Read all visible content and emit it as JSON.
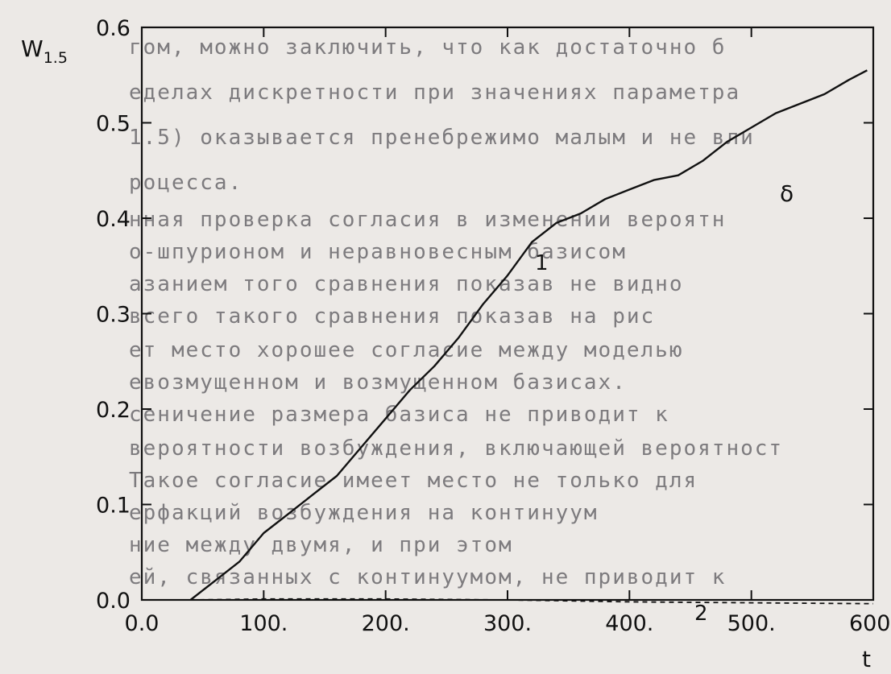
{
  "background_text": [
    "гом, можно заключить, что как достаточно б",
    "еделах дискретности при значениях параметра",
    "1.5) оказывается пренебрежимо малым и не вли",
    "роцесса.",
    "нная проверка согласия в изменении вероятн",
    "о-шпурионом и неравновесным базисом",
    "азанием того сравнения показав не видно",
    "всего такого сравнения показав на рис",
    "ет место хорошее согласие между моделью",
    "евозмущенном и возмущенном базисах.",
    "сеничение размера базиса не приводит к",
    "вероятности возбуждения, включающей вероятност",
    "Такое согласие имеет место не только для",
    "ерфакций возбуждения на континуум",
    "ние между двумя, и при этом",
    "ей, связанных с континуумом, не приводит к"
  ],
  "chart_data": {
    "type": "line",
    "title": "",
    "xlabel": "t",
    "ylabel": "W",
    "ylabel_subscript": "1.5",
    "panel_label": "δ",
    "xlim": [
      0,
      600
    ],
    "ylim": [
      0,
      0.6
    ],
    "x_ticks": [
      0,
      100,
      200,
      300,
      400,
      500,
      600
    ],
    "x_tick_labels": [
      "0.0",
      "100.",
      "200.",
      "300.",
      "400.",
      "500.",
      "600."
    ],
    "y_ticks": [
      0,
      0.1,
      0.2,
      0.3,
      0.4,
      0.5,
      0.6
    ],
    "y_tick_labels": [
      "0.0",
      "0.1",
      "0.2",
      "0.3",
      "0.4",
      "0.5",
      "0.6"
    ],
    "grid": false,
    "legend": "none",
    "series": [
      {
        "name": "1",
        "style": "solid",
        "x": [
          40,
          60,
          80,
          100,
          120,
          140,
          160,
          180,
          200,
          220,
          240,
          260,
          280,
          300,
          320,
          340,
          360,
          380,
          400,
          420,
          440,
          460,
          480,
          500,
          520,
          540,
          560,
          580,
          595
        ],
        "y": [
          0.0,
          0.02,
          0.04,
          0.07,
          0.09,
          0.11,
          0.13,
          0.16,
          0.19,
          0.22,
          0.245,
          0.275,
          0.31,
          0.34,
          0.375,
          0.395,
          0.405,
          0.42,
          0.43,
          0.44,
          0.445,
          0.46,
          0.48,
          0.495,
          0.51,
          0.52,
          0.53,
          0.545,
          0.555
        ]
      },
      {
        "name": "2",
        "style": "dashed",
        "x": [
          40,
          100,
          200,
          300,
          400,
          500,
          600
        ],
        "y": [
          0.0,
          0.001,
          0.001,
          0.0,
          -0.002,
          -0.003,
          -0.004
        ]
      }
    ]
  }
}
